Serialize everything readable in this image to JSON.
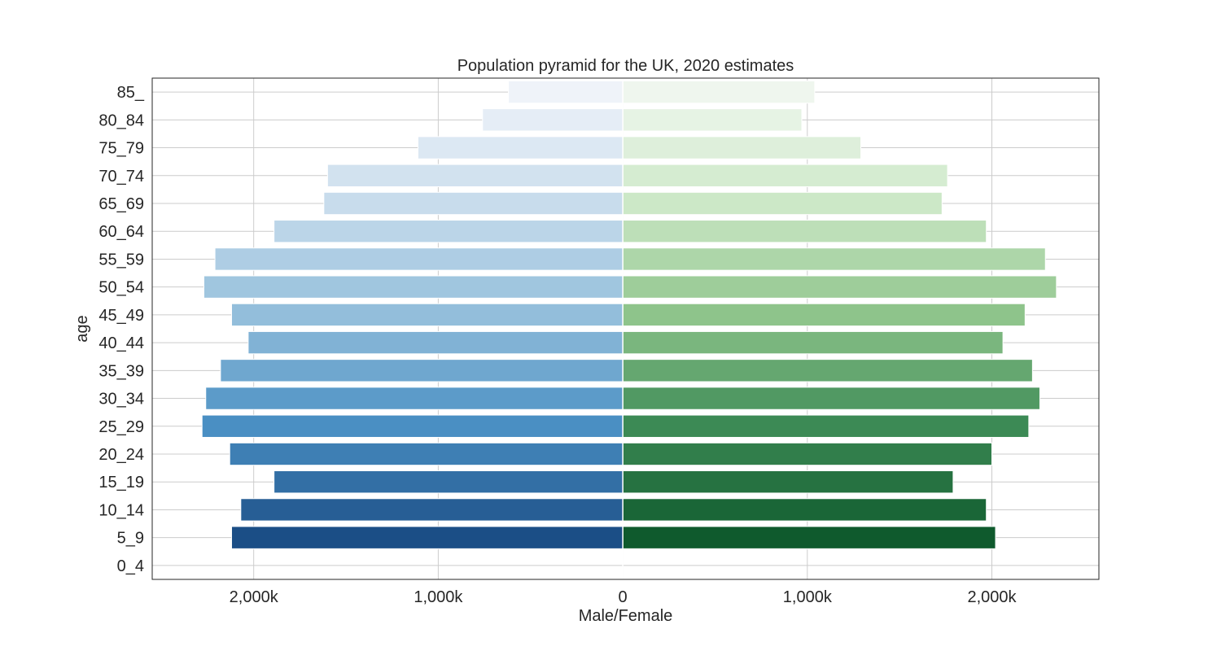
{
  "chart_data": {
    "type": "bar",
    "orientation": "horizontal-pyramid",
    "title": "Population pyramid for the UK, 2020 estimates",
    "xlabel": "Male/Female",
    "ylabel": "age",
    "categories": [
      "0_4",
      "5_9",
      "10_14",
      "15_19",
      "20_24",
      "25_29",
      "30_34",
      "35_39",
      "40_44",
      "45_49",
      "50_54",
      "55_59",
      "60_64",
      "65_69",
      "70_74",
      "75_79",
      "80_84",
      "85_"
    ],
    "series": [
      {
        "name": "Male",
        "palette": "blues",
        "values": [
          0,
          2120,
          2070,
          1890,
          2130,
          2280,
          2260,
          2180,
          2030,
          2120,
          2270,
          2210,
          1890,
          1620,
          1600,
          1110,
          760,
          620
        ]
      },
      {
        "name": "Female",
        "palette": "greens",
        "values": [
          0,
          2020,
          1970,
          1790,
          2000,
          2200,
          2260,
          2220,
          2060,
          2180,
          2350,
          2290,
          1970,
          1730,
          1760,
          1290,
          970,
          1040
        ]
      }
    ],
    "xlim": [
      -2550,
      2580
    ],
    "x_ticks": [
      {
        "value": -2000,
        "label": "2,000k"
      },
      {
        "value": -1000,
        "label": "1,000k"
      },
      {
        "value": 0,
        "label": "0"
      },
      {
        "value": 1000,
        "label": "1,000k"
      },
      {
        "value": 2000,
        "label": "2,000k"
      }
    ],
    "value_unit": "thousands",
    "grid": true,
    "legend": "none"
  }
}
